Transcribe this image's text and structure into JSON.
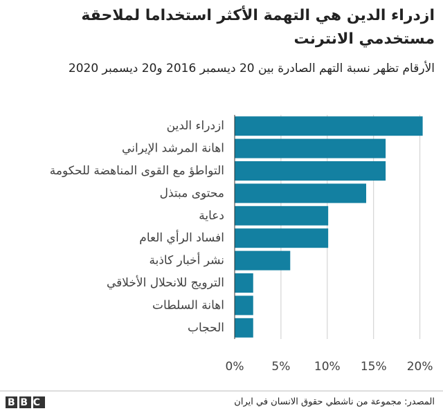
{
  "chart_data": {
    "type": "bar",
    "orientation": "horizontal",
    "title": "ازدراء الدين هي التهمة الأكثر استخداما لملاحقة مستخدمي الانترنت",
    "subtitle": "الأرقام تظهر نسبة التهم الصادرة بين 20 ديسمبر 2016 و20 ديسمبر 2020",
    "categories": [
      "ازدراء الدين",
      "اهانة المرشد الإيراني",
      "التواطؤ مع القوى المناهضة للحكومة",
      "محتوى مبتذل",
      "دعاية",
      "افساد الرأي العام",
      "نشر أخبار كاذبة",
      "الترويج للانحلال الأخلاقي",
      "اهانة السلطات",
      "الحجاب"
    ],
    "values": [
      20.3,
      16.3,
      16.3,
      14.2,
      10.1,
      10.1,
      6.0,
      2.0,
      2.0,
      2.0
    ],
    "color": "#1380a1",
    "xlim": [
      0,
      21
    ],
    "xticks": [
      {
        "value": 0,
        "label": "0%"
      },
      {
        "value": 5,
        "label": "5%"
      },
      {
        "value": 10,
        "label": "10%"
      },
      {
        "value": 15,
        "label": "15%"
      },
      {
        "value": 20,
        "label": "20%"
      }
    ],
    "grid": true,
    "source": "المصدر: مجموعة من ناشطي حقوق الانسان في ايران",
    "logo": "BBC"
  }
}
